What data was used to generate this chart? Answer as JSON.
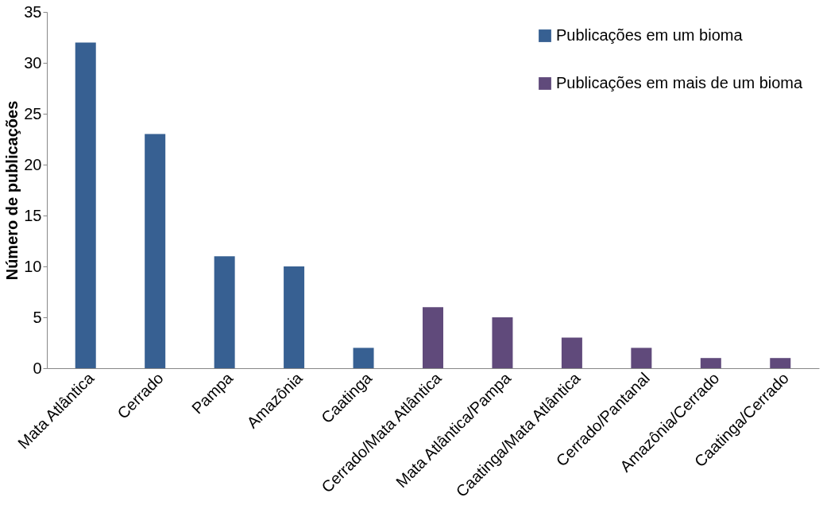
{
  "chart_data": {
    "type": "bar",
    "ylabel": "Número de publicações",
    "categories": [
      "Mata Atlântica",
      "Cerrado",
      "Pampa",
      "Amazônia",
      "Caatinga",
      "Cerrado/Mata Atlântica",
      "Mata Atlântica/Pampa",
      "Caatinga/Mata Atlântica",
      "Cerrado/Pantanal",
      "Amazônia/Cerrado",
      "Caatinga/Cerrado"
    ],
    "series": [
      {
        "name": "Publicações em um bioma",
        "color": "#376092",
        "values": [
          32,
          23,
          11,
          10,
          2,
          null,
          null,
          null,
          null,
          null,
          null
        ]
      },
      {
        "name": "Publicações em mais de um bioma",
        "color": "#604a7b",
        "values": [
          null,
          null,
          null,
          null,
          null,
          6,
          5,
          3,
          2,
          1,
          1
        ]
      }
    ],
    "ylim": [
      0,
      35
    ],
    "yticks": [
      0,
      5,
      10,
      15,
      20,
      25,
      30,
      35
    ],
    "grid": false,
    "legend": "top right"
  }
}
